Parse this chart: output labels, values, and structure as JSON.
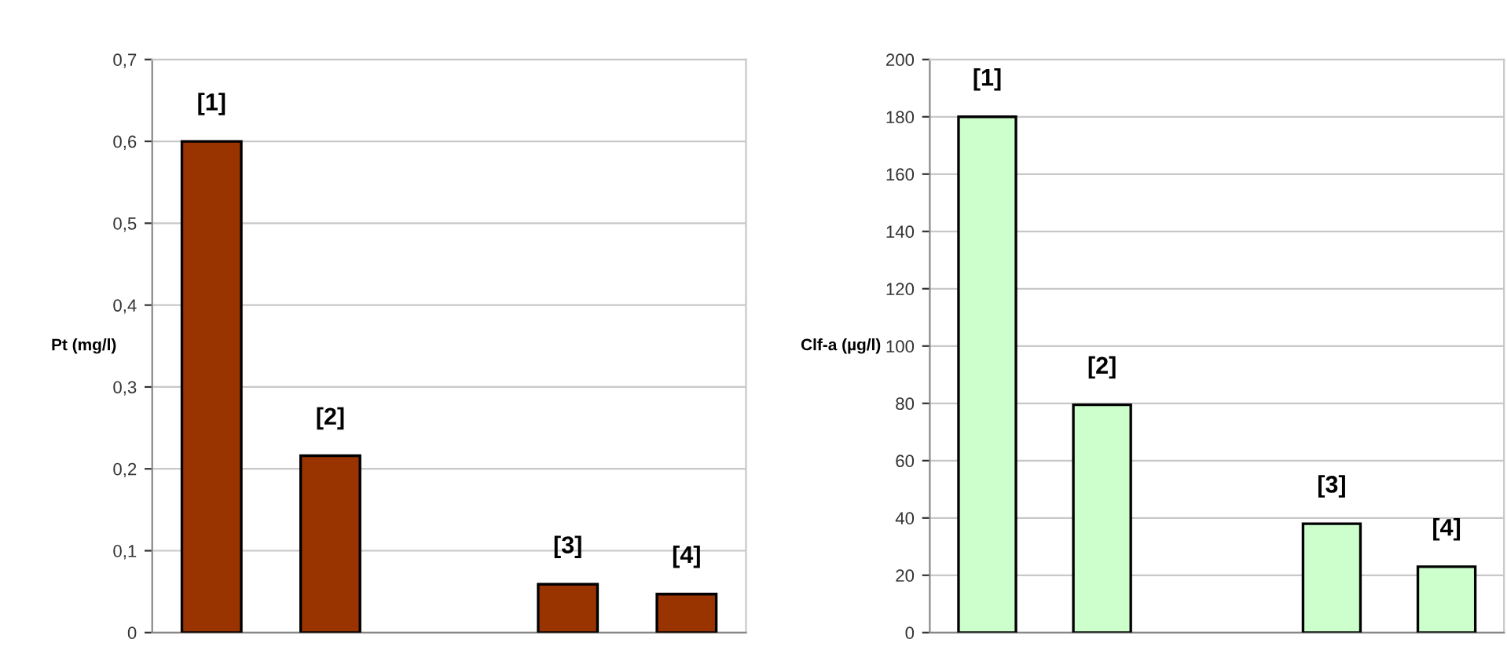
{
  "chart_data": [
    {
      "type": "bar",
      "ylabel": "Pt (mg/l)",
      "categories": [
        null,
        null,
        null,
        null,
        null
      ],
      "values": [
        0.6,
        0.216,
        null,
        0.059,
        0.047
      ],
      "color": "#993300",
      "ylim": [
        0,
        0.7
      ],
      "yticks": [
        0,
        {
          "value": 0.1,
          "label": "0,1"
        },
        {
          "value": 0.2,
          "label": "0,2"
        },
        {
          "value": 0.3,
          "label": "0,3"
        },
        {
          "value": 0.4,
          "label": "0,4"
        },
        {
          "value": 0.5,
          "label": "0,5"
        },
        {
          "value": 0.6,
          "label": "0,6"
        },
        {
          "value": 0.7,
          "label": "0,7"
        }
      ],
      "grid": "y",
      "annotations": [
        "[1]",
        "[2]",
        "[3]",
        "[4]"
      ]
    },
    {
      "type": "bar",
      "ylabel": "Clf-a (µg/l)",
      "categories": [
        null,
        null,
        null,
        null,
        null
      ],
      "values": [
        180,
        79.5,
        null,
        38,
        23
      ],
      "color": "#ccffcc",
      "ylim": [
        0,
        200
      ],
      "yticks": [
        0,
        20,
        40,
        60,
        80,
        100,
        120,
        140,
        160,
        180,
        200
      ],
      "grid": "y",
      "annotations": [
        "[1]",
        "[2]",
        "[3]",
        "[4]"
      ]
    }
  ]
}
